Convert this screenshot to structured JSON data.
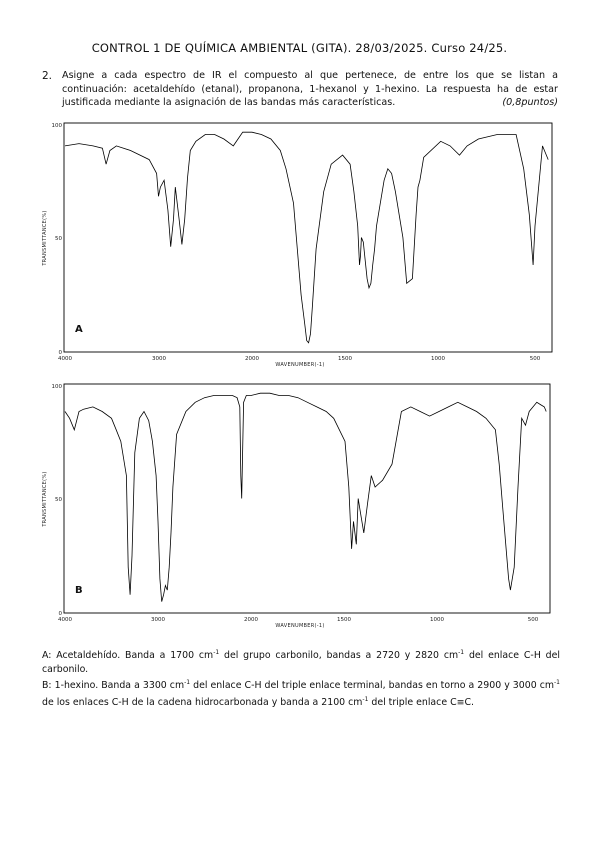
{
  "header": {
    "title": "CONTROL 1 DE QUÍMICA AMBIENTAL (GITA). 28/03/2025. Curso 24/25."
  },
  "question": {
    "number": "2.",
    "text": "Asigne a cada espectro de IR el compuesto al que pertenece, de entre los que se listan a continuación: acetaldehído (etanal), propanona, 1-hexanol y 1-hexino. La respuesta ha de estar justificada mediante la asignación de las bandas más características.",
    "points": "(0,8puntos)"
  },
  "spectra": [
    {
      "panel_label": "A",
      "xlabel": "WAVENUMBER(-1)",
      "ylabel": "TRANSMITTANCE(%)",
      "x_ticks": [
        "4000",
        "3000",
        "2000",
        "1500",
        "1000",
        "500"
      ],
      "y_ticks": [
        "100",
        "50",
        "0"
      ]
    },
    {
      "panel_label": "B",
      "xlabel": "WAVENUMBER(-1)",
      "ylabel": "TRANSMITTANCE(%)",
      "x_ticks": [
        "4000",
        "3000",
        "2000",
        "1500",
        "1000",
        "500"
      ],
      "y_ticks": [
        "100",
        "50",
        "0"
      ]
    }
  ],
  "chart_data": [
    {
      "type": "line",
      "panel_label": "A",
      "xlabel": "WAVENUMBER(-1)",
      "ylabel": "TRANSMITTANCE(%)",
      "x_ticks": [
        4000,
        3000,
        2000,
        1500,
        1000,
        500
      ],
      "ylim": [
        0,
        100
      ],
      "series": [
        {
          "x": [
            4000,
            3850,
            3700,
            3600,
            3560,
            3520,
            3450,
            3300,
            3100,
            3020,
            3000,
            2980,
            2940,
            2900,
            2870,
            2840,
            2820,
            2780,
            2750,
            2720,
            2690,
            2660,
            2600,
            2500,
            2400,
            2300,
            2200,
            2150,
            2100,
            2000,
            1950,
            1900,
            1850,
            1820,
            1780,
            1760,
            1740,
            1720,
            1710,
            1700,
            1690,
            1680,
            1660,
            1620,
            1580,
            1520,
            1480,
            1460,
            1440,
            1430,
            1425,
            1420,
            1410,
            1400,
            1390,
            1380,
            1370,
            1360,
            1350,
            1340,
            1300,
            1280,
            1260,
            1240,
            1200,
            1180,
            1150,
            1130,
            1120,
            1110,
            1090,
            1000,
            950,
            900,
            880,
            860,
            800,
            700,
            600,
            560,
            530,
            510,
            500,
            460,
            430
          ],
          "values": [
            90,
            91,
            90,
            89,
            82,
            88,
            90,
            88,
            84,
            78,
            68,
            72,
            75,
            62,
            46,
            58,
            72,
            58,
            47,
            58,
            76,
            88,
            92,
            95,
            95,
            93,
            90,
            93,
            96,
            96,
            95,
            93,
            88,
            80,
            65,
            45,
            25,
            12,
            5,
            4,
            8,
            20,
            45,
            70,
            82,
            86,
            82,
            70,
            55,
            38,
            42,
            50,
            48,
            40,
            32,
            28,
            30,
            38,
            45,
            55,
            75,
            80,
            78,
            70,
            50,
            30,
            32,
            60,
            72,
            75,
            85,
            92,
            90,
            86,
            88,
            90,
            93,
            95,
            95,
            80,
            60,
            38,
            55,
            90,
            84
          ]
        }
      ]
    },
    {
      "type": "line",
      "panel_label": "B",
      "xlabel": "WAVENUMBER(-1)",
      "ylabel": "TRANSMITTANCE(%)",
      "x_ticks": [
        4000,
        3000,
        2000,
        1500,
        1000,
        500
      ],
      "ylim": [
        0,
        100
      ],
      "series": [
        {
          "x": [
            4000,
            3950,
            3900,
            3850,
            3800,
            3700,
            3600,
            3500,
            3450,
            3400,
            3340,
            3320,
            3300,
            3280,
            3250,
            3200,
            3150,
            3100,
            3060,
            3020,
            3000,
            2980,
            2960,
            2940,
            2920,
            2900,
            2880,
            2860,
            2840,
            2800,
            2700,
            2600,
            2500,
            2400,
            2300,
            2200,
            2150,
            2120,
            2110,
            2100,
            2090,
            2080,
            2050,
            2000,
            1950,
            1900,
            1850,
            1800,
            1750,
            1700,
            1650,
            1600,
            1560,
            1500,
            1480,
            1465,
            1455,
            1440,
            1430,
            1420,
            1400,
            1380,
            1360,
            1340,
            1300,
            1250,
            1200,
            1150,
            1100,
            1050,
            1000,
            950,
            900,
            850,
            800,
            750,
            700,
            680,
            660,
            640,
            630,
            620,
            600,
            580,
            560,
            540,
            520,
            500,
            480,
            460,
            440,
            430
          ],
          "values": [
            88,
            85,
            80,
            88,
            89,
            90,
            88,
            85,
            80,
            75,
            60,
            20,
            8,
            25,
            70,
            85,
            88,
            84,
            75,
            60,
            40,
            15,
            5,
            8,
            12,
            10,
            20,
            35,
            55,
            78,
            88,
            92,
            94,
            95,
            95,
            95,
            94,
            90,
            60,
            50,
            70,
            92,
            95,
            95,
            96,
            96,
            95,
            95,
            94,
            92,
            90,
            88,
            85,
            75,
            55,
            28,
            40,
            30,
            50,
            45,
            35,
            48,
            60,
            55,
            58,
            65,
            88,
            90,
            88,
            86,
            88,
            90,
            92,
            90,
            88,
            85,
            80,
            65,
            45,
            25,
            15,
            10,
            20,
            55,
            85,
            82,
            88,
            90,
            92,
            91,
            90,
            88
          ]
        }
      ]
    }
  ],
  "answer": {
    "a_label": "A: Acetaldehído",
    "a_text_1": ". Banda a 1700 cm",
    "a_text_2": " del grupo carbonilo, bandas a 2720 y 2820 cm",
    "a_text_3": " del enlace C-H del carbonilo.",
    "b_label": "B: 1-hexino",
    "b_text_1": ". Banda a 3300 cm",
    "b_text_2": " del enlace C-H del triple enlace terminal, bandas en torno a 2900 y 3000 cm",
    "b_text_3": " de los enlaces C-H de la cadena hidrocarbonada y banda a 2100 cm",
    "b_text_4": " del triple enlace C≡C.",
    "sup": "-1"
  }
}
